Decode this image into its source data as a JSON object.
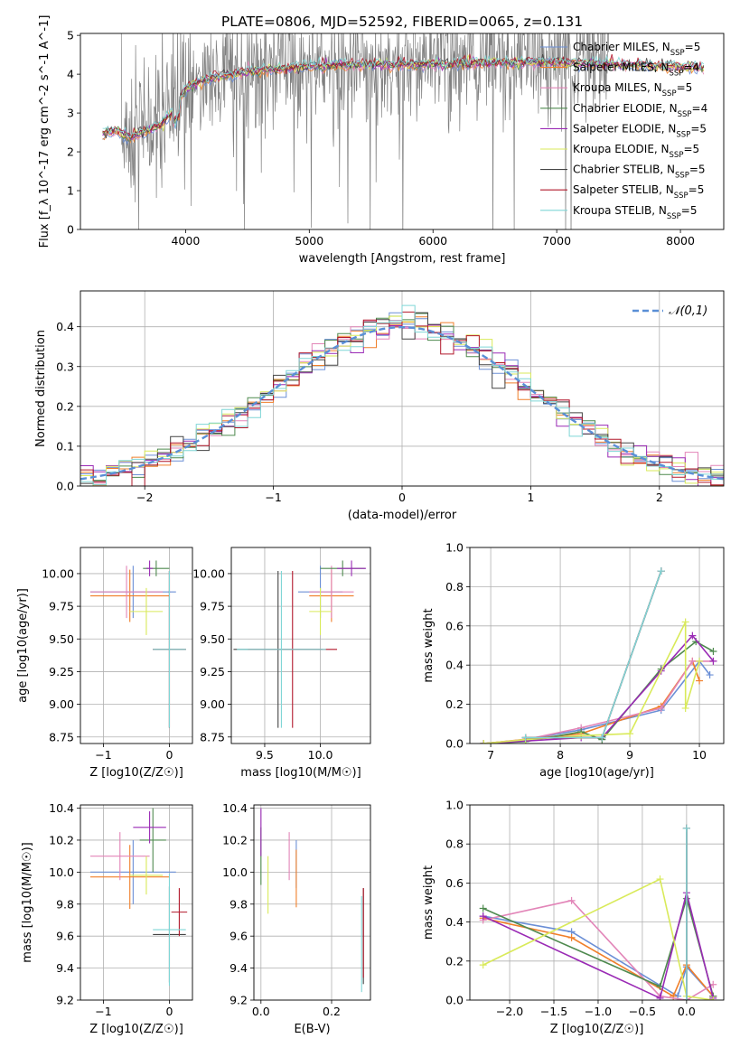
{
  "figure": {
    "title": "PLATE=0806, MJD=52592, FIBERID=0065, z=0.131",
    "series_names": [
      "Chabrier MILES, N_SSP=5",
      "Salpeter MILES, N_SSP=4",
      "Kroupa MILES, N_SSP=5",
      "Chabrier ELODIE, N_SSP=4",
      "Salpeter ELODIE, N_SSP=5",
      "Kroupa ELODIE, N_SSP=5",
      "Chabrier STELIB, N_SSP=5",
      "Salpeter STELIB, N_SSP=5",
      "Kroupa STELIB, N_SSP=5"
    ],
    "series_colors": [
      "#6b8fd6",
      "#f07f2a",
      "#e285b8",
      "#4f8a4f",
      "#9a2ab5",
      "#d9ea5a",
      "#444444",
      "#b2182b",
      "#7fd6d6"
    ]
  },
  "chart_data": [
    {
      "id": "spectrum",
      "type": "line",
      "xlabel": "wavelength [Angstrom, rest frame]",
      "ylabel": "Flux [f_λ 10^-17 erg cm^-2 s^-1 A^-1]",
      "xlim": [
        3150,
        8350
      ],
      "ylim": [
        0,
        5.05
      ],
      "xticks": [
        4000,
        5000,
        6000,
        7000,
        8000
      ],
      "yticks": [
        0,
        1,
        2,
        3,
        4,
        5
      ],
      "legend_position": "right",
      "legend_labels": [
        {
          "base": "Chabrier MILES, N",
          "sub": "SSP",
          "tail": "=5"
        },
        {
          "base": "Salpeter MILES, N",
          "sub": "SSP",
          "tail": "=4"
        },
        {
          "base": "Kroupa MILES, N",
          "sub": "SSP",
          "tail": "=5"
        },
        {
          "base": "Chabrier ELODIE, N",
          "sub": "SSP",
          "tail": "=4"
        },
        {
          "base": "Salpeter ELODIE, N",
          "sub": "SSP",
          "tail": "=5"
        },
        {
          "base": "Kroupa ELODIE, N",
          "sub": "SSP",
          "tail": "=5"
        },
        {
          "base": "Chabrier STELIB, N",
          "sub": "SSP",
          "tail": "=5"
        },
        {
          "base": "Salpeter STELIB, N",
          "sub": "SSP",
          "tail": "=5"
        },
        {
          "base": "Kroupa STELIB, N",
          "sub": "SSP",
          "tail": "=5"
        }
      ],
      "data_continuum": [
        [
          3500,
          2.4
        ],
        [
          3700,
          2.7
        ],
        [
          3900,
          3.2
        ],
        [
          4000,
          3.6
        ],
        [
          4200,
          3.9
        ],
        [
          4500,
          4.05
        ],
        [
          5000,
          4.2
        ],
        [
          5500,
          4.25
        ],
        [
          6000,
          4.3
        ],
        [
          6500,
          4.35
        ],
        [
          7000,
          4.4
        ],
        [
          7400,
          4.35
        ]
      ],
      "model_continuum": [
        [
          3330,
          2.45
        ],
        [
          3450,
          2.55
        ],
        [
          3550,
          2.35
        ],
        [
          3650,
          2.5
        ],
        [
          3800,
          2.7
        ],
        [
          3900,
          3.1
        ],
        [
          4000,
          3.6
        ],
        [
          4100,
          3.8
        ],
        [
          4300,
          3.95
        ],
        [
          4600,
          4.1
        ],
        [
          5000,
          4.2
        ],
        [
          5500,
          4.25
        ],
        [
          6000,
          4.25
        ],
        [
          6500,
          4.3
        ],
        [
          7000,
          4.3
        ],
        [
          7500,
          4.25
        ],
        [
          8000,
          4.2
        ],
        [
          8200,
          4.15
        ]
      ]
    },
    {
      "id": "residuals",
      "type": "area",
      "xlabel": "(data-model)/error",
      "ylabel": "Normed distribution",
      "xlim": [
        -2.5,
        2.5
      ],
      "ylim": [
        0,
        0.49
      ],
      "xticks": [
        -2,
        -1,
        0,
        1,
        2
      ],
      "yticks": [
        0.0,
        0.1,
        0.2,
        0.3,
        0.4
      ],
      "grid": true,
      "legend_label": "𝒩(0,1)",
      "legend_position": "top-right",
      "bin_width": 0.1,
      "bins_from": -2.5,
      "note": "step histograms of normalized residuals for each of the 9 fits, plus a dashed normal curve"
    },
    {
      "id": "age_vs_Z",
      "type": "scatter",
      "xlabel": "Z [log10(Z/Z☉)]",
      "ylabel": "age  [log10(age/yr)]",
      "xlim": [
        -1.35,
        0.35
      ],
      "ylim": [
        8.7,
        10.2
      ],
      "xticks": [
        -1,
        0
      ],
      "yticks": [
        8.75,
        9.0,
        9.25,
        9.5,
        9.75,
        10.0
      ],
      "grid": true,
      "points": [
        {
          "s": 0,
          "x": -0.55,
          "y": 9.86,
          "xerr": 0.65,
          "yerr": 0.2
        },
        {
          "s": 1,
          "x": -0.6,
          "y": 9.83,
          "xerr": 0.6,
          "yerr": 0.2
        },
        {
          "s": 2,
          "x": -0.65,
          "y": 9.86,
          "xerr": 0.55,
          "yerr": 0.2
        },
        {
          "s": 3,
          "x": -0.2,
          "y": 10.04,
          "xerr": 0.2,
          "yerr": 0.06
        },
        {
          "s": 4,
          "x": -0.3,
          "y": 10.04,
          "xerr": 0.05,
          "yerr": 0.06
        },
        {
          "s": 5,
          "x": -0.35,
          "y": 9.71,
          "xerr": 0.25,
          "yerr": 0.18
        },
        {
          "s": 6,
          "x": 0.0,
          "y": 9.42,
          "xerr": 0.25,
          "yerr": 0.6
        },
        {
          "s": 7,
          "x": 0.0,
          "y": 9.42,
          "xerr": 0.25,
          "yerr": 0.6
        },
        {
          "s": 8,
          "x": 0.0,
          "y": 9.42,
          "xerr": 0.25,
          "yerr": 0.6
        }
      ]
    },
    {
      "id": "age_vs_mass",
      "type": "scatter",
      "xlabel": "mass [log10(M/M☉)]",
      "ylabel": "",
      "xlim": [
        9.2,
        10.45
      ],
      "ylim": [
        8.7,
        10.2
      ],
      "xticks": [
        9.5,
        10.0
      ],
      "yticks": [
        8.75,
        9.0,
        9.25,
        9.5,
        9.75,
        10.0
      ],
      "grid": true,
      "points": [
        {
          "s": 0,
          "x": 10.0,
          "y": 9.86,
          "xerr": 0.2,
          "yerr": 0.2
        },
        {
          "s": 1,
          "x": 10.1,
          "y": 9.83,
          "xerr": 0.2,
          "yerr": 0.2
        },
        {
          "s": 2,
          "x": 10.1,
          "y": 9.86,
          "xerr": 0.2,
          "yerr": 0.2
        },
        {
          "s": 3,
          "x": 10.2,
          "y": 10.04,
          "xerr": 0.2,
          "yerr": 0.06
        },
        {
          "s": 4,
          "x": 10.28,
          "y": 10.04,
          "xerr": 0.13,
          "yerr": 0.06
        },
        {
          "s": 5,
          "x": 10.0,
          "y": 9.71,
          "xerr": 0.1,
          "yerr": 0.18
        },
        {
          "s": 6,
          "x": 9.62,
          "y": 9.42,
          "xerr": 0.4,
          "yerr": 0.6
        },
        {
          "s": 7,
          "x": 9.75,
          "y": 9.42,
          "xerr": 0.4,
          "yerr": 0.6
        },
        {
          "s": 8,
          "x": 9.65,
          "y": 9.42,
          "xerr": 0.4,
          "yerr": 0.6
        }
      ]
    },
    {
      "id": "massweight_vs_age",
      "type": "line",
      "xlabel": "age  [log10(age/yr)]",
      "ylabel": "mass weight",
      "xlim": [
        6.7,
        10.35
      ],
      "ylim": [
        0,
        1
      ],
      "xticks": [
        7,
        8,
        9,
        10
      ],
      "yticks": [
        0.0,
        0.2,
        0.4,
        0.6,
        0.8,
        1.0
      ],
      "grid": true,
      "series": [
        {
          "s": 0,
          "points": [
            [
              6.9,
              0.0
            ],
            [
              7.5,
              0.02
            ],
            [
              8.3,
              0.07
            ],
            [
              9.45,
              0.17
            ],
            [
              10.0,
              0.42
            ],
            [
              10.15,
              0.35
            ]
          ]
        },
        {
          "s": 1,
          "points": [
            [
              6.9,
              0.0
            ],
            [
              8.3,
              0.05
            ],
            [
              9.45,
              0.19
            ],
            [
              9.9,
              0.42
            ],
            [
              10.0,
              0.32
            ]
          ]
        },
        {
          "s": 2,
          "points": [
            [
              6.9,
              0.0
            ],
            [
              7.5,
              0.02
            ],
            [
              8.3,
              0.08
            ],
            [
              9.45,
              0.18
            ],
            [
              9.9,
              0.42
            ],
            [
              10.2,
              0.42
            ]
          ]
        },
        {
          "s": 3,
          "points": [
            [
              6.9,
              0.0
            ],
            [
              7.5,
              0.01
            ],
            [
              8.3,
              0.06
            ],
            [
              8.6,
              0.02
            ],
            [
              9.45,
              0.38
            ],
            [
              9.95,
              0.52
            ],
            [
              10.2,
              0.47
            ]
          ]
        },
        {
          "s": 4,
          "points": [
            [
              6.9,
              0.0
            ],
            [
              8.3,
              0.03
            ],
            [
              8.6,
              0.03
            ],
            [
              9.45,
              0.37
            ],
            [
              9.9,
              0.55
            ],
            [
              10.2,
              0.42
            ]
          ]
        },
        {
          "s": 5,
          "points": [
            [
              6.9,
              0.0
            ],
            [
              7.5,
              0.02
            ],
            [
              8.3,
              0.04
            ],
            [
              9.0,
              0.05
            ],
            [
              9.8,
              0.62
            ],
            [
              9.8,
              0.18
            ],
            [
              10.0,
              0.42
            ]
          ]
        },
        {
          "s": 6,
          "points": [
            [
              7.5,
              0.03
            ],
            [
              8.6,
              0.03
            ],
            [
              9.45,
              0.88
            ]
          ]
        },
        {
          "s": 7,
          "points": [
            [
              7.5,
              0.03
            ],
            [
              8.6,
              0.03
            ],
            [
              9.45,
              0.88
            ]
          ]
        },
        {
          "s": 8,
          "points": [
            [
              7.5,
              0.03
            ],
            [
              8.6,
              0.03
            ],
            [
              9.45,
              0.88
            ]
          ]
        }
      ]
    },
    {
      "id": "mass_vs_Z",
      "type": "scatter",
      "xlabel": "Z [log10(Z/Z☉)]",
      "ylabel": "mass [log10(M/M☉)]",
      "xlim": [
        -1.35,
        0.35
      ],
      "ylim": [
        9.2,
        10.42
      ],
      "xticks": [
        -1,
        0
      ],
      "yticks": [
        9.2,
        9.4,
        9.6,
        9.8,
        10.0,
        10.2,
        10.4
      ],
      "grid": true,
      "points": [
        {
          "s": 0,
          "x": -0.55,
          "y": 10.0,
          "xerr": 0.65,
          "yerr": 0.2
        },
        {
          "s": 1,
          "x": -0.6,
          "y": 9.97,
          "xerr": 0.6,
          "yerr": 0.2
        },
        {
          "s": 2,
          "x": -0.75,
          "y": 10.1,
          "xerr": 0.45,
          "yerr": 0.15
        },
        {
          "s": 3,
          "x": -0.25,
          "y": 10.2,
          "xerr": 0.2,
          "yerr": 0.2
        },
        {
          "s": 4,
          "x": -0.3,
          "y": 10.28,
          "xerr": 0.25,
          "yerr": 0.1
        },
        {
          "s": 5,
          "x": -0.35,
          "y": 9.98,
          "xerr": 0.25,
          "yerr": 0.12
        },
        {
          "s": 6,
          "x": 0.0,
          "y": 9.61,
          "xerr": 0.25,
          "yerr": 0.3
        },
        {
          "s": 7,
          "x": 0.15,
          "y": 9.75,
          "xerr": 0.12,
          "yerr": 0.15
        },
        {
          "s": 8,
          "x": 0.0,
          "y": 9.64,
          "xerr": 0.25,
          "yerr": 0.35
        }
      ]
    },
    {
      "id": "mass_vs_ebv",
      "type": "scatter",
      "xlabel": "E(B-V)",
      "ylabel": "",
      "xlim": [
        -0.02,
        0.31
      ],
      "ylim": [
        9.2,
        10.42
      ],
      "xticks": [
        0.0,
        0.2
      ],
      "yticks": [
        9.2,
        9.4,
        9.6,
        9.8,
        10.0,
        10.2,
        10.4
      ],
      "grid": true,
      "points": [
        {
          "s": 0,
          "x": 0.1,
          "y": 10.05,
          "yerr": 0.15
        },
        {
          "s": 1,
          "x": 0.1,
          "y": 9.96,
          "yerr": 0.18
        },
        {
          "s": 2,
          "x": 0.08,
          "y": 10.1,
          "yerr": 0.15
        },
        {
          "s": 3,
          "x": 0.0,
          "y": 10.1,
          "yerr": 0.18
        },
        {
          "s": 4,
          "x": 0.0,
          "y": 10.25,
          "yerr": 0.15
        },
        {
          "s": 5,
          "x": 0.02,
          "y": 9.92,
          "yerr": 0.18
        },
        {
          "s": 6,
          "x": 0.29,
          "y": 9.6,
          "yerr": 0.3
        },
        {
          "s": 7,
          "x": 0.29,
          "y": 9.62,
          "yerr": 0.28
        },
        {
          "s": 8,
          "x": 0.285,
          "y": 9.55,
          "yerr": 0.3
        }
      ]
    },
    {
      "id": "massweight_vs_Z",
      "type": "line",
      "xlabel": "Z [log10(Z/Z☉)]",
      "ylabel": "mass weight",
      "xlim": [
        -2.45,
        0.42
      ],
      "ylim": [
        0,
        1
      ],
      "xticks": [
        -2.0,
        -1.5,
        -1.0,
        -0.5,
        0.0
      ],
      "yticks": [
        0.0,
        0.2,
        0.4,
        0.6,
        0.8,
        1.0
      ],
      "grid": true,
      "series": [
        {
          "s": 0,
          "points": [
            [
              -2.3,
              0.43
            ],
            [
              -1.3,
              0.35
            ],
            [
              -0.1,
              0.02
            ],
            [
              0.0,
              0.17
            ],
            [
              0.3,
              0.02
            ]
          ]
        },
        {
          "s": 1,
          "points": [
            [
              -2.3,
              0.42
            ],
            [
              -1.3,
              0.32
            ],
            [
              -0.15,
              0.02
            ],
            [
              0.0,
              0.18
            ],
            [
              0.3,
              0.02
            ]
          ]
        },
        {
          "s": 2,
          "points": [
            [
              -2.3,
              0.41
            ],
            [
              -1.3,
              0.51
            ],
            [
              -0.3,
              0.02
            ],
            [
              0.0,
              0.0
            ],
            [
              0.3,
              0.08
            ]
          ]
        },
        {
          "s": 3,
          "points": [
            [
              -2.3,
              0.47
            ],
            [
              -0.3,
              0.07
            ],
            [
              0.0,
              0.52
            ],
            [
              0.3,
              0.02
            ]
          ]
        },
        {
          "s": 4,
          "points": [
            [
              -2.3,
              0.43
            ],
            [
              -0.3,
              0.01
            ],
            [
              0.0,
              0.55
            ],
            [
              0.3,
              0.01
            ]
          ]
        },
        {
          "s": 5,
          "points": [
            [
              -2.3,
              0.18
            ],
            [
              -0.3,
              0.62
            ],
            [
              0.0,
              0.02
            ],
            [
              0.3,
              0.0
            ]
          ]
        },
        {
          "s": 6,
          "points": [
            [
              0.0,
              0.88
            ],
            [
              0.0,
              0.0
            ]
          ]
        },
        {
          "s": 7,
          "points": [
            [
              0.0,
              0.88
            ],
            [
              0.0,
              0.0
            ]
          ]
        },
        {
          "s": 8,
          "points": [
            [
              0.0,
              0.88
            ],
            [
              0.0,
              0.0
            ]
          ]
        }
      ]
    }
  ]
}
